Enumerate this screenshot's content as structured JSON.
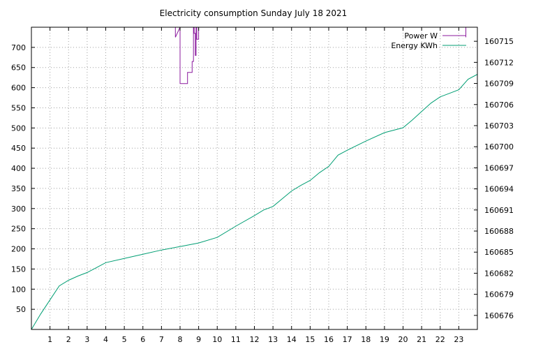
{
  "chart_data": {
    "type": "line",
    "title": "Electricity consumption Sunday July 18 2021",
    "xlim": [
      0,
      24
    ],
    "ylim_left": [
      0,
      750
    ],
    "ylim_right": [
      160674,
      160717
    ],
    "x_ticks": [
      1,
      2,
      3,
      4,
      5,
      6,
      7,
      8,
      9,
      10,
      11,
      12,
      13,
      14,
      15,
      16,
      17,
      18,
      19,
      20,
      21,
      22,
      23
    ],
    "y_ticks_left": [
      50,
      100,
      150,
      200,
      250,
      300,
      350,
      400,
      450,
      500,
      550,
      600,
      650,
      700
    ],
    "y_ticks_right": [
      160676,
      160679,
      160682,
      160685,
      160688,
      160691,
      160694,
      160697,
      160700,
      160703,
      160706,
      160709,
      160712,
      160715
    ],
    "grid": true,
    "legend_position": "top-right",
    "series": [
      {
        "name": "Power W",
        "axis": "left",
        "color": "#8b1a9e",
        "step": true,
        "x": [
          7.75,
          7.75,
          8.0,
          8.0,
          8.4,
          8.4,
          8.65,
          8.65,
          8.72,
          8.72,
          8.76,
          8.76,
          8.82,
          8.82,
          8.86,
          8.86,
          8.9,
          8.9,
          9.0,
          9.0,
          23.38,
          23.38
        ],
        "y": [
          750,
          725,
          750,
          610,
          610,
          638,
          638,
          665,
          665,
          750,
          750,
          735,
          735,
          680,
          680,
          750,
          750,
          720,
          720,
          750,
          750,
          725
        ]
      },
      {
        "name": "Energy KWh",
        "axis": "right",
        "color": "#009e73",
        "step": false,
        "x": [
          0,
          0.5,
          1.0,
          1.5,
          2.0,
          2.5,
          3.0,
          3.5,
          4.0,
          5.0,
          6.0,
          7.0,
          8.0,
          9.0,
          10.0,
          11.0,
          12.0,
          12.5,
          13.0,
          13.5,
          14.0,
          14.5,
          15.0,
          15.5,
          16.0,
          16.5,
          17.0,
          18.0,
          19.0,
          20.0,
          20.5,
          21.0,
          21.5,
          22.0,
          22.5,
          23.0,
          23.5,
          24.0
        ],
        "y": [
          160674.0,
          160676.2,
          160678.2,
          160680.2,
          160681.0,
          160681.6,
          160682.1,
          160682.8,
          160683.5,
          160684.1,
          160684.7,
          160685.3,
          160685.8,
          160686.3,
          160687.1,
          160688.7,
          160690.2,
          160691.0,
          160691.5,
          160692.6,
          160693.7,
          160694.5,
          160695.2,
          160696.3,
          160697.2,
          160698.8,
          160699.5,
          160700.8,
          160702.0,
          160702.7,
          160703.8,
          160705.0,
          160706.2,
          160707.1,
          160707.6,
          160708.1,
          160709.6,
          160710.3
        ]
      }
    ]
  }
}
